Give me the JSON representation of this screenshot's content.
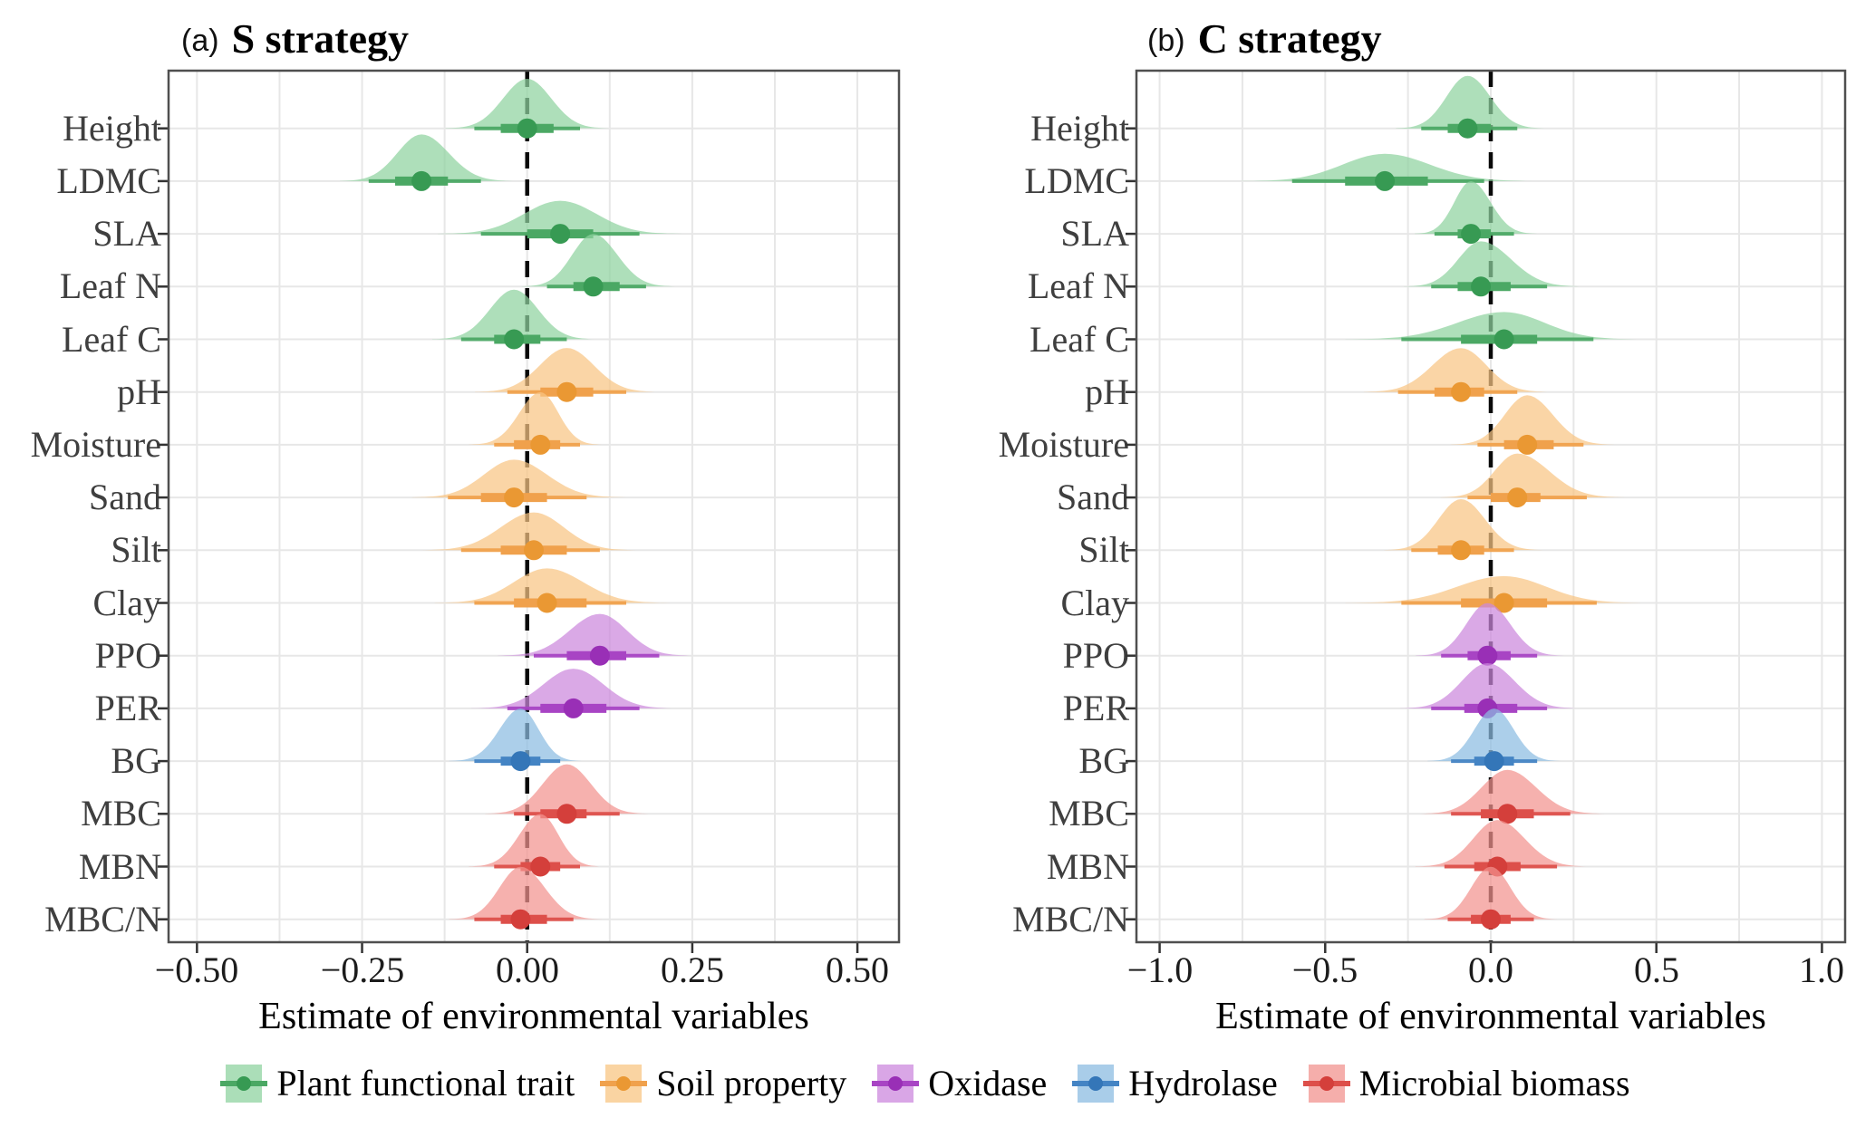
{
  "chart_data": {
    "type": "ridgeline_interval",
    "description": "Posterior density ridges with 66% (thick) and 95% (thin) intervals and median dots; dashed reference line at 0",
    "groups": {
      "plant": {
        "fill": "#8fd3a0",
        "line": "#4ba864",
        "dot": "#379a53"
      },
      "soil": {
        "fill": "#f8c583",
        "line": "#f0a14c",
        "dot": "#ea9833"
      },
      "oxidase": {
        "fill": "#cc88dd",
        "line": "#a844c4",
        "dot": "#992fb6"
      },
      "hydrolase": {
        "fill": "#8cbce2",
        "line": "#4484c4",
        "dot": "#3476b8"
      },
      "microbial": {
        "fill": "#f2938f",
        "line": "#dd4f4a",
        "dot": "#d43f3b"
      }
    },
    "reference_line": {
      "x": 0,
      "style": "dashed",
      "color": "#0a0a0a"
    },
    "legend": [
      {
        "label": "Plant functional trait",
        "group": "plant"
      },
      {
        "label": "Soil property",
        "group": "soil"
      },
      {
        "label": "Oxidase",
        "group": "oxidase"
      },
      {
        "label": "Hydrolase",
        "group": "hydrolase"
      },
      {
        "label": "Microbial biomass",
        "group": "microbial"
      }
    ],
    "panels": [
      {
        "id": "a",
        "tag": "(a)",
        "title": "S strategy",
        "x_axis": {
          "label": "Estimate of environmental variables",
          "tick_labels": [
            "−0.50",
            "−0.25",
            "0.00",
            "0.25",
            "0.50"
          ],
          "tick_values": [
            -0.5,
            -0.25,
            0.0,
            0.25,
            0.5
          ],
          "range": [
            -0.543,
            0.563
          ],
          "grid_step": 0.125
        },
        "rows": [
          {
            "label": "Height",
            "group": "plant",
            "estimate": 0.0,
            "ci66": [
              -0.04,
              0.04
            ],
            "ci95": [
              -0.08,
              0.08
            ]
          },
          {
            "label": "LDMC",
            "group": "plant",
            "estimate": -0.16,
            "ci66": [
              -0.2,
              -0.12
            ],
            "ci95": [
              -0.24,
              -0.07
            ]
          },
          {
            "label": "SLA",
            "group": "plant",
            "estimate": 0.05,
            "ci66": [
              0.0,
              0.1
            ],
            "ci95": [
              -0.07,
              0.17
            ]
          },
          {
            "label": "Leaf N",
            "group": "plant",
            "estimate": 0.1,
            "ci66": [
              0.07,
              0.14
            ],
            "ci95": [
              0.03,
              0.18
            ]
          },
          {
            "label": "Leaf C",
            "group": "plant",
            "estimate": -0.02,
            "ci66": [
              -0.05,
              0.02
            ],
            "ci95": [
              -0.1,
              0.06
            ]
          },
          {
            "label": "pH",
            "group": "soil",
            "estimate": 0.06,
            "ci66": [
              0.02,
              0.1
            ],
            "ci95": [
              -0.03,
              0.15
            ]
          },
          {
            "label": "Moisture",
            "group": "soil",
            "estimate": 0.02,
            "ci66": [
              -0.02,
              0.05
            ],
            "ci95": [
              -0.05,
              0.08
            ]
          },
          {
            "label": "Sand",
            "group": "soil",
            "estimate": -0.02,
            "ci66": [
              -0.07,
              0.03
            ],
            "ci95": [
              -0.12,
              0.09
            ]
          },
          {
            "label": "Silt",
            "group": "soil",
            "estimate": 0.01,
            "ci66": [
              -0.04,
              0.06
            ],
            "ci95": [
              -0.1,
              0.11
            ]
          },
          {
            "label": "Clay",
            "group": "soil",
            "estimate": 0.03,
            "ci66": [
              -0.02,
              0.09
            ],
            "ci95": [
              -0.08,
              0.15
            ]
          },
          {
            "label": "PPO",
            "group": "oxidase",
            "estimate": 0.11,
            "ci66": [
              0.06,
              0.15
            ],
            "ci95": [
              0.01,
              0.2
            ]
          },
          {
            "label": "PER",
            "group": "oxidase",
            "estimate": 0.07,
            "ci66": [
              0.02,
              0.12
            ],
            "ci95": [
              -0.03,
              0.17
            ]
          },
          {
            "label": "BG",
            "group": "hydrolase",
            "estimate": -0.01,
            "ci66": [
              -0.04,
              0.02
            ],
            "ci95": [
              -0.08,
              0.05
            ]
          },
          {
            "label": "MBC",
            "group": "microbial",
            "estimate": 0.06,
            "ci66": [
              0.02,
              0.09
            ],
            "ci95": [
              -0.02,
              0.14
            ]
          },
          {
            "label": "MBN",
            "group": "microbial",
            "estimate": 0.02,
            "ci66": [
              -0.01,
              0.05
            ],
            "ci95": [
              -0.05,
              0.08
            ]
          },
          {
            "label": "MBC/N",
            "group": "microbial",
            "estimate": -0.01,
            "ci66": [
              -0.04,
              0.03
            ],
            "ci95": [
              -0.08,
              0.07
            ]
          }
        ]
      },
      {
        "id": "b",
        "tag": "(b)",
        "title": "C strategy",
        "x_axis": {
          "label": "Estimate of environmental variables",
          "tick_labels": [
            "−1.0",
            "−0.5",
            "0.0",
            "0.5",
            "1.0"
          ],
          "tick_values": [
            -1.0,
            -0.5,
            0.0,
            0.5,
            1.0
          ],
          "range": [
            -1.07,
            1.07
          ],
          "grid_step": 0.25
        },
        "rows": [
          {
            "label": "Height",
            "group": "plant",
            "estimate": -0.07,
            "ci66": [
              -0.13,
              0.0
            ],
            "ci95": [
              -0.21,
              0.08
            ]
          },
          {
            "label": "LDMC",
            "group": "plant",
            "estimate": -0.32,
            "ci66": [
              -0.44,
              -0.19
            ],
            "ci95": [
              -0.6,
              -0.02
            ]
          },
          {
            "label": "SLA",
            "group": "plant",
            "estimate": -0.06,
            "ci66": [
              -0.1,
              0.0
            ],
            "ci95": [
              -0.17,
              0.07
            ]
          },
          {
            "label": "Leaf N",
            "group": "plant",
            "estimate": -0.03,
            "ci66": [
              -0.1,
              0.06
            ],
            "ci95": [
              -0.18,
              0.17
            ]
          },
          {
            "label": "Leaf C",
            "group": "plant",
            "estimate": 0.04,
            "ci66": [
              -0.09,
              0.14
            ],
            "ci95": [
              -0.27,
              0.31
            ]
          },
          {
            "label": "pH",
            "group": "soil",
            "estimate": -0.09,
            "ci66": [
              -0.17,
              -0.02
            ],
            "ci95": [
              -0.28,
              0.08
            ]
          },
          {
            "label": "Moisture",
            "group": "soil",
            "estimate": 0.11,
            "ci66": [
              0.04,
              0.19
            ],
            "ci95": [
              -0.04,
              0.28
            ]
          },
          {
            "label": "Sand",
            "group": "soil",
            "estimate": 0.08,
            "ci66": [
              0.0,
              0.15
            ],
            "ci95": [
              -0.07,
              0.29
            ]
          },
          {
            "label": "Silt",
            "group": "soil",
            "estimate": -0.09,
            "ci66": [
              -0.16,
              -0.02
            ],
            "ci95": [
              -0.24,
              0.07
            ]
          },
          {
            "label": "Clay",
            "group": "soil",
            "estimate": 0.04,
            "ci66": [
              -0.09,
              0.17
            ],
            "ci95": [
              -0.27,
              0.32
            ]
          },
          {
            "label": "PPO",
            "group": "oxidase",
            "estimate": -0.01,
            "ci66": [
              -0.07,
              0.06
            ],
            "ci95": [
              -0.15,
              0.14
            ]
          },
          {
            "label": "PER",
            "group": "oxidase",
            "estimate": -0.01,
            "ci66": [
              -0.08,
              0.08
            ],
            "ci95": [
              -0.18,
              0.17
            ]
          },
          {
            "label": "BG",
            "group": "hydrolase",
            "estimate": 0.01,
            "ci66": [
              -0.05,
              0.07
            ],
            "ci95": [
              -0.12,
              0.14
            ]
          },
          {
            "label": "MBC",
            "group": "microbial",
            "estimate": 0.05,
            "ci66": [
              -0.03,
              0.13
            ],
            "ci95": [
              -0.12,
              0.24
            ]
          },
          {
            "label": "MBN",
            "group": "microbial",
            "estimate": 0.02,
            "ci66": [
              -0.05,
              0.09
            ],
            "ci95": [
              -0.14,
              0.2
            ]
          },
          {
            "label": "MBC/N",
            "group": "microbial",
            "estimate": 0.0,
            "ci66": [
              -0.06,
              0.06
            ],
            "ci95": [
              -0.13,
              0.13
            ]
          }
        ]
      }
    ]
  }
}
